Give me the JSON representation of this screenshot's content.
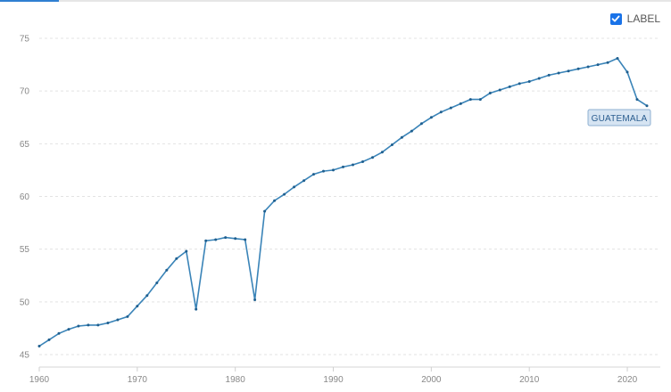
{
  "controls": {
    "label_toggle": "LABEL",
    "label_checked": true
  },
  "chart_data": {
    "type": "line",
    "title": "",
    "xlabel": "",
    "ylabel": "",
    "xlim": [
      1960,
      2022
    ],
    "ylim": [
      45,
      75
    ],
    "x_ticks": [
      1960,
      1970,
      1980,
      1990,
      2000,
      2010,
      2020
    ],
    "y_ticks": [
      45,
      50,
      55,
      60,
      65,
      70,
      75
    ],
    "grid": true,
    "series": [
      {
        "name": "GUATEMALA",
        "color": "#3a84b8",
        "x": [
          1960,
          1961,
          1962,
          1963,
          1964,
          1965,
          1966,
          1967,
          1968,
          1969,
          1970,
          1971,
          1972,
          1973,
          1974,
          1975,
          1976,
          1977,
          1978,
          1979,
          1980,
          1981,
          1982,
          1983,
          1984,
          1985,
          1986,
          1987,
          1988,
          1989,
          1990,
          1991,
          1992,
          1993,
          1994,
          1995,
          1996,
          1997,
          1998,
          1999,
          2000,
          2001,
          2002,
          2003,
          2004,
          2005,
          2006,
          2007,
          2008,
          2009,
          2010,
          2011,
          2012,
          2013,
          2014,
          2015,
          2016,
          2017,
          2018,
          2019,
          2020,
          2021,
          2022
        ],
        "y": [
          45.8,
          46.4,
          47.0,
          47.4,
          47.7,
          47.8,
          47.8,
          48.0,
          48.3,
          48.6,
          49.6,
          50.6,
          51.8,
          53.0,
          54.1,
          54.8,
          49.3,
          55.8,
          55.9,
          56.1,
          56.0,
          55.9,
          50.2,
          58.6,
          59.6,
          60.2,
          60.9,
          61.5,
          62.1,
          62.4,
          62.5,
          62.8,
          63.0,
          63.3,
          63.7,
          64.2,
          64.9,
          65.6,
          66.2,
          66.9,
          67.5,
          68.0,
          68.4,
          68.8,
          69.2,
          69.2,
          69.8,
          70.1,
          70.4,
          70.7,
          70.9,
          71.2,
          71.5,
          71.7,
          71.9,
          72.1,
          72.3,
          72.5,
          72.7,
          73.1,
          71.8,
          69.2,
          68.6
        ]
      }
    ]
  }
}
